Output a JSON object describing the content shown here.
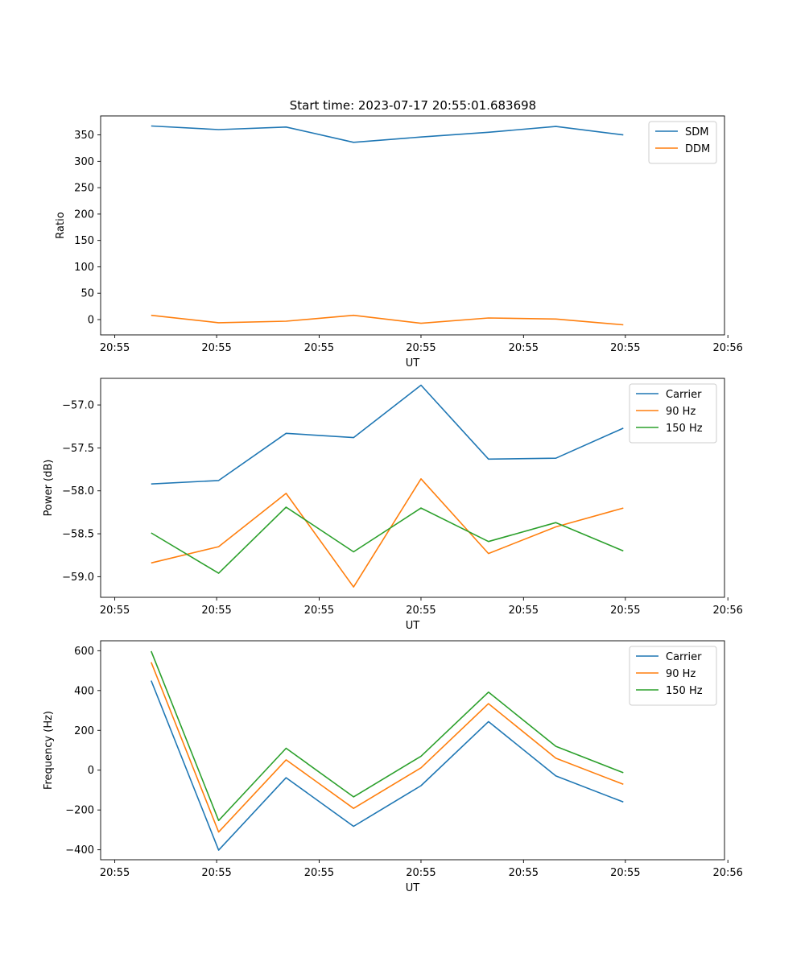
{
  "figure_title": "Start time: 2023-07-17 20:55:01.683698",
  "chart_data": [
    {
      "type": "line",
      "title": "Start time: 2023-07-17 20:55:01.683698",
      "xlabel": "UT",
      "ylabel": "Ratio",
      "x": [
        0,
        1,
        2,
        3,
        4,
        5,
        6,
        7
      ],
      "xlim": [
        -0.75,
        8.5
      ],
      "xticks": [
        -0.54,
        0.97,
        2.49,
        4.0,
        5.52,
        7.03,
        8.55
      ],
      "xtick_labels": [
        "20:55",
        "20:55",
        "20:55",
        "20:55",
        "20:55",
        "20:55",
        "20:56"
      ],
      "ylim": [
        -29,
        386
      ],
      "yticks": [
        0,
        50,
        100,
        150,
        200,
        250,
        300,
        350
      ],
      "ytick_labels": [
        "0",
        "50",
        "100",
        "150",
        "200",
        "250",
        "300",
        "350"
      ],
      "legend_position": "top-right",
      "series": [
        {
          "name": "SDM",
          "color": "#1f77b4",
          "values": [
            367,
            360,
            365,
            336,
            346,
            355,
            366,
            350
          ]
        },
        {
          "name": "DDM",
          "color": "#ff7f0e",
          "values": [
            8,
            -6,
            -3,
            8,
            -7,
            3,
            1,
            -10
          ]
        }
      ]
    },
    {
      "type": "line",
      "title": "",
      "xlabel": "UT",
      "ylabel": "Power (dB)",
      "x": [
        0,
        1,
        2,
        3,
        4,
        5,
        6,
        7
      ],
      "xlim": [
        -0.75,
        8.5
      ],
      "xticks": [
        -0.54,
        0.97,
        2.49,
        4.0,
        5.52,
        7.03,
        8.55
      ],
      "xtick_labels": [
        "20:55",
        "20:55",
        "20:55",
        "20:55",
        "20:55",
        "20:55",
        "20:56"
      ],
      "ylim": [
        -59.24,
        -56.69
      ],
      "yticks": [
        -59.0,
        -58.5,
        -58.0,
        -57.5,
        -57.0
      ],
      "ytick_labels": [
        "−59.0",
        "−58.5",
        "−58.0",
        "−57.5",
        "−57.0"
      ],
      "legend_position": "top-right",
      "series": [
        {
          "name": "Carrier",
          "color": "#1f77b4",
          "values": [
            -57.92,
            -57.88,
            -57.33,
            -57.38,
            -56.77,
            -57.63,
            -57.62,
            -57.27
          ]
        },
        {
          "name": "90 Hz",
          "color": "#ff7f0e",
          "values": [
            -58.84,
            -58.65,
            -58.03,
            -59.12,
            -57.86,
            -58.73,
            -58.42,
            -58.2
          ]
        },
        {
          "name": "150 Hz",
          "color": "#2ca02c",
          "values": [
            -58.49,
            -58.96,
            -58.19,
            -58.71,
            -58.2,
            -58.59,
            -58.37,
            -58.7
          ]
        }
      ]
    },
    {
      "type": "line",
      "title": "",
      "xlabel": "UT",
      "ylabel": "Frequency (Hz)",
      "x": [
        0,
        1,
        2,
        3,
        4,
        5,
        6,
        7
      ],
      "xlim": [
        -0.75,
        8.5
      ],
      "xticks": [
        -0.54,
        0.97,
        2.49,
        4.0,
        5.52,
        7.03,
        8.55
      ],
      "xtick_labels": [
        "20:55",
        "20:55",
        "20:55",
        "20:55",
        "20:55",
        "20:55",
        "20:56"
      ],
      "ylim": [
        -450,
        650
      ],
      "yticks": [
        -400,
        -200,
        0,
        200,
        400,
        600
      ],
      "ytick_labels": [
        "−400",
        "−200",
        "0",
        "200",
        "400",
        "600"
      ],
      "legend_position": "top-right",
      "series": [
        {
          "name": "Carrier",
          "color": "#1f77b4",
          "values": [
            450,
            -402,
            -38,
            -282,
            -78,
            244,
            -29,
            -160
          ]
        },
        {
          "name": "90 Hz",
          "color": "#ff7f0e",
          "values": [
            542,
            -311,
            52,
            -192,
            12,
            334,
            60,
            -71
          ]
        },
        {
          "name": "150 Hz",
          "color": "#2ca02c",
          "values": [
            598,
            -253,
            110,
            -134,
            70,
            392,
            120,
            -13
          ]
        }
      ]
    }
  ]
}
